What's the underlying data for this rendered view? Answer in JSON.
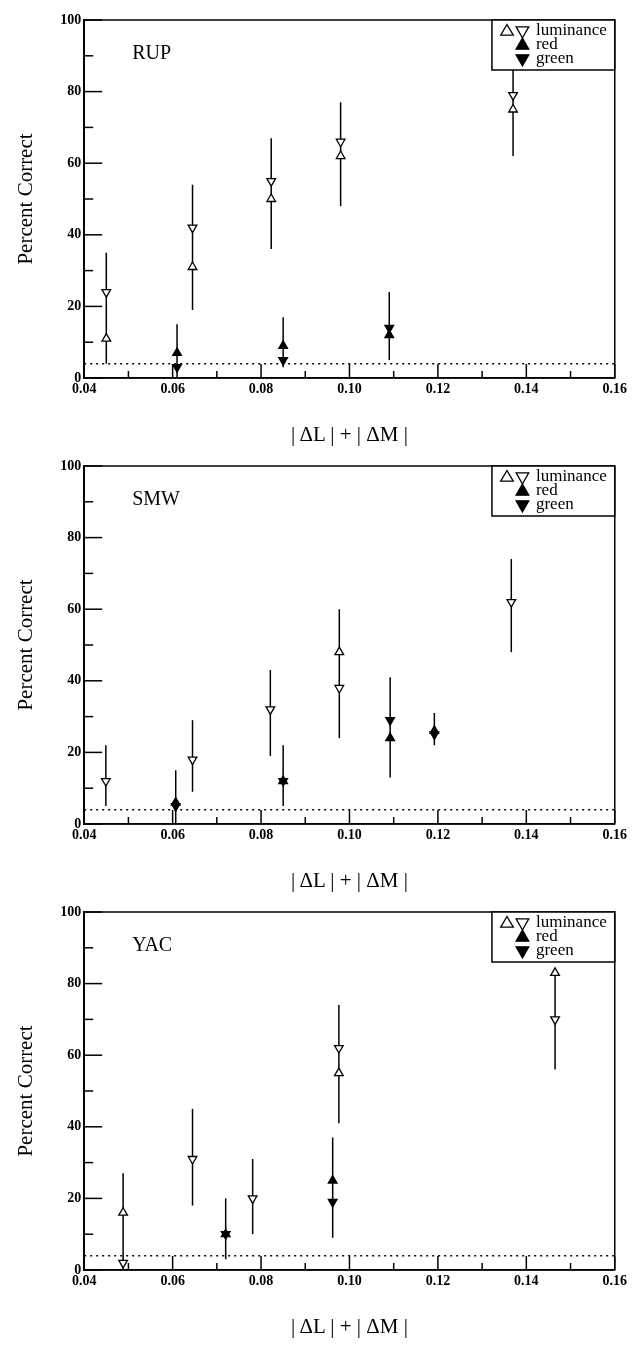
{
  "chart_data": [
    {
      "type": "scatter",
      "title": "RUP",
      "xlabel": "| ΔL | + | ΔM |",
      "ylabel": "Percent Correct",
      "xlim": [
        0.04,
        0.16
      ],
      "ylim": [
        0,
        100
      ],
      "xticks": [
        0.04,
        {
          "value": 0.05,
          "label": null
        },
        0.06,
        {
          "value": 0.07,
          "label": null
        },
        0.08,
        {
          "value": 0.09,
          "label": null
        },
        {
          "value": 0.1,
          "label": "0.10"
        },
        {
          "value": 0.11,
          "label": null
        },
        0.12,
        {
          "value": 0.13,
          "label": null
        },
        0.14,
        {
          "value": 0.15,
          "label": null
        },
        0.16
      ],
      "yticks": [
        0,
        {
          "value": 10,
          "label": null
        },
        20,
        {
          "value": 30,
          "label": null
        },
        40,
        {
          "value": 50,
          "label": null
        },
        60,
        {
          "value": 70,
          "label": null
        },
        80,
        {
          "value": 90,
          "label": null
        },
        100
      ],
      "legend": "top right",
      "marker": "triangle",
      "ref_lines": [
        {
          "axis": "y",
          "value": 4,
          "line_style": "dotted"
        }
      ],
      "series": [
        {
          "color": "#000000",
          "x": [
            0.045,
            0.0645,
            0.0823,
            0.098,
            0.137
          ],
          "values": [
            11,
            31,
            50,
            62,
            75
          ]
        },
        {
          "name": "luminance",
          "color": "#000000",
          "x": [
            0.045,
            0.0645,
            0.0823,
            0.098,
            0.137
          ],
          "values": [
            24,
            42,
            55,
            66,
            79
          ],
          "errors": [
            [
              4,
              35
            ],
            [
              19,
              54
            ],
            [
              36,
              67
            ],
            [
              48,
              77
            ],
            [
              62,
              86
            ]
          ]
        },
        {
          "name": "red",
          "color": "#000000",
          "x": [
            0.061,
            0.085,
            0.109
          ],
          "values": [
            7,
            9,
            12
          ],
          "errors": [
            [
              0,
              15
            ],
            [
              3,
              17
            ],
            [
              5,
              24
            ]
          ]
        },
        {
          "name": "green",
          "color": "#000000",
          "x": [
            0.061,
            0.085,
            0.109
          ],
          "values": [
            3,
            5,
            14
          ]
        }
      ]
    },
    {
      "type": "scatter",
      "title": "SMW",
      "xlabel": "| ΔL | + | ΔM |",
      "ylabel": "Percent Correct",
      "xlim": [
        0.04,
        0.16
      ],
      "ylim": [
        0,
        100
      ],
      "xticks": [
        0.04,
        {
          "value": 0.05,
          "label": null
        },
        0.06,
        {
          "value": 0.07,
          "label": null
        },
        0.08,
        {
          "value": 0.09,
          "label": null
        },
        {
          "value": 0.1,
          "label": "0.10"
        },
        {
          "value": 0.11,
          "label": null
        },
        0.12,
        {
          "value": 0.13,
          "label": null
        },
        0.14,
        {
          "value": 0.15,
          "label": null
        },
        0.16
      ],
      "yticks": [
        0,
        {
          "value": 10,
          "label": null
        },
        20,
        {
          "value": 30,
          "label": null
        },
        40,
        {
          "value": 50,
          "label": null
        },
        60,
        {
          "value": 70,
          "label": null
        },
        80,
        {
          "value": 90,
          "label": null
        },
        100
      ],
      "legend": "top right",
      "marker": "triangle",
      "ref_lines": [
        {
          "axis": "y",
          "value": 4,
          "line_style": "dotted"
        }
      ],
      "series": [
        {
          "color": "#000000",
          "x": [
            0.0977
          ],
          "values": [
            48
          ]
        },
        {
          "name": "luminance",
          "color": "#000000",
          "x": [
            0.0449,
            0.0645,
            0.0821,
            0.0977,
            0.1366
          ],
          "values": [
            12,
            18,
            32,
            38,
            62
          ],
          "errors": [
            [
              5,
              22
            ],
            [
              9,
              29
            ],
            [
              19,
              43
            ],
            [
              24,
              60
            ],
            [
              48,
              74
            ]
          ]
        },
        {
          "name": "red",
          "color": "#000000",
          "x": [
            0.0607,
            0.085,
            0.1092,
            0.1192
          ],
          "values": [
            6,
            12,
            24,
            26
          ],
          "errors": [
            [
              0,
              15
            ],
            [
              5,
              22
            ],
            [
              13,
              41
            ],
            [
              22,
              31
            ]
          ]
        },
        {
          "name": "green",
          "color": "#000000",
          "x": [
            0.0607,
            0.085,
            0.1092,
            0.1192
          ],
          "values": [
            5,
            12,
            29,
            25
          ]
        }
      ]
    },
    {
      "type": "scatter",
      "title": "YAC",
      "xlabel": "| ΔL | + | ΔM |",
      "ylabel": "Percent Correct",
      "xlim": [
        0.04,
        0.16
      ],
      "ylim": [
        0,
        100
      ],
      "xticks": [
        0.04,
        {
          "value": 0.05,
          "label": null
        },
        0.06,
        {
          "value": 0.07,
          "label": null
        },
        0.08,
        {
          "value": 0.09,
          "label": null
        },
        {
          "value": 0.1,
          "label": "0.10"
        },
        {
          "value": 0.11,
          "label": null
        },
        0.12,
        {
          "value": 0.13,
          "label": null
        },
        0.14,
        {
          "value": 0.15,
          "label": null
        },
        0.16
      ],
      "yticks": [
        0,
        {
          "value": 10,
          "label": null
        },
        20,
        {
          "value": 30,
          "label": null
        },
        40,
        {
          "value": 50,
          "label": null
        },
        60,
        {
          "value": 70,
          "label": null
        },
        80,
        {
          "value": 90,
          "label": null
        },
        100
      ],
      "legend": "top right",
      "marker": "triangle",
      "ref_lines": [
        {
          "axis": "y",
          "value": 4,
          "line_style": "dotted"
        }
      ],
      "series": [
        {
          "color": "#000000",
          "x": [
            0.0488,
            0.0976,
            0.1465
          ],
          "values": [
            16,
            55,
            83
          ],
          "errors": [
            [
              0,
              27
            ],
            [
              41,
              74
            ],
            [
              56,
              84
            ]
          ]
        },
        {
          "name": "luminance",
          "color": "#000000",
          "x": [
            0.0488,
            0.0645,
            0.0781,
            0.0976,
            0.1465
          ],
          "values": [
            2,
            31,
            20,
            62,
            70
          ],
          "errors": [
            null,
            [
              18,
              45
            ],
            [
              10,
              31
            ],
            null,
            null
          ]
        },
        {
          "name": "red",
          "color": "#000000",
          "x": [
            0.072,
            0.0962
          ],
          "values": [
            10,
            25
          ],
          "errors": [
            [
              3,
              20
            ],
            [
              9,
              37
            ]
          ]
        },
        {
          "name": "green",
          "color": "#000000",
          "x": [
            0.072,
            0.0962
          ],
          "values": [
            10,
            19
          ]
        }
      ]
    }
  ]
}
